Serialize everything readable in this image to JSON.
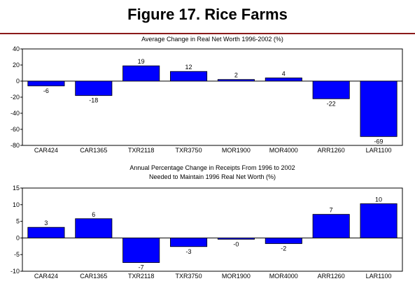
{
  "page": {
    "title": "Figure 17. Rice Farms"
  },
  "colors": {
    "bar": "#0000ff",
    "rule": "#8b1a1a"
  },
  "chart_data": [
    {
      "type": "bar",
      "title": "Average Change in Real Net Worth 1996-2002 (%)",
      "categories": [
        "CAR424",
        "CAR1365",
        "TXR2118",
        "TXR3750",
        "MOR1900",
        "MOR4000",
        "ARR1260",
        "LAR1100"
      ],
      "values": [
        -6,
        -18,
        19,
        12,
        2,
        4,
        -22,
        -69
      ],
      "value_labels": [
        "-6",
        "-18",
        "19",
        "12",
        "2",
        "4",
        "-22",
        "-69"
      ],
      "ylim": [
        -80,
        40
      ],
      "yticks": [
        40,
        20,
        0,
        -20,
        -40,
        -60,
        -80
      ],
      "ytick_labels": [
        "40",
        "20",
        "0",
        "-20",
        "-40",
        "-60",
        "-80"
      ],
      "xlabel": "",
      "ylabel": "",
      "grid": false
    },
    {
      "type": "bar",
      "title": "Annual Percentage Change in Receipts From 1996 to 2002\nNeeded to Maintain 1996 Real Net Worth (%)",
      "title_lines": [
        "Annual Percentage Change in Receipts From 1996 to 2002",
        "Needed to Maintain 1996 Real Net Worth (%)"
      ],
      "categories": [
        "CAR424",
        "CAR1365",
        "TXR2118",
        "TXR3750",
        "MOR1900",
        "MOR4000",
        "ARR1260",
        "LAR1100"
      ],
      "values": [
        3.2,
        5.8,
        -7.4,
        -2.6,
        -0.4,
        -1.7,
        7.1,
        10.3
      ],
      "value_labels": [
        "3",
        "6",
        "-7",
        "-3",
        "-0",
        "-2",
        "7",
        "10"
      ],
      "ylim": [
        -10,
        15
      ],
      "yticks": [
        15,
        10,
        5,
        0,
        -5,
        -10
      ],
      "ytick_labels": [
        "15",
        "10",
        "5",
        "0",
        "-5",
        "-10"
      ],
      "xlabel": "",
      "ylabel": "",
      "grid": false
    }
  ]
}
